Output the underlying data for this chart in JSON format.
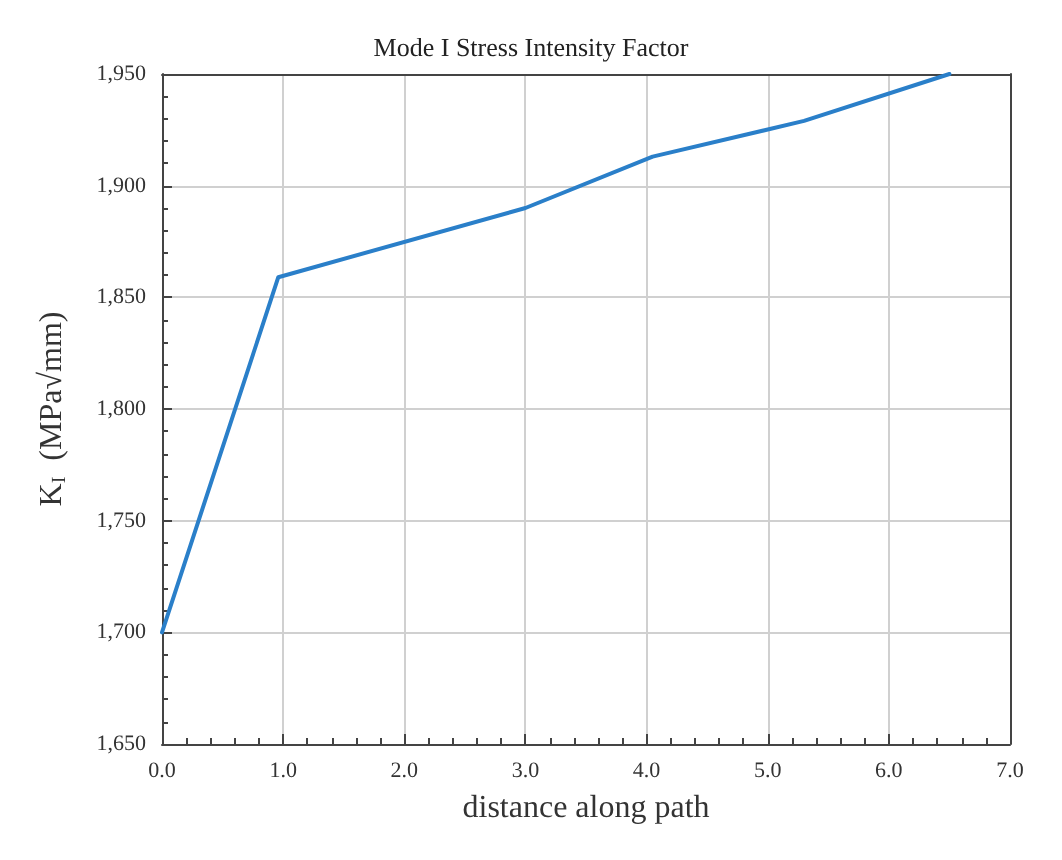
{
  "chart_data": {
    "type": "line",
    "title": "Mode I Stress Intensity Factor",
    "xlabel": "distance along path",
    "ylabel": "K$_{I}$  (MPa√mm)",
    "x": [
      0,
      0.96,
      3.0,
      4.05,
      5.3,
      6.5
    ],
    "series": [
      {
        "color": "#2a7fc9",
        "values": [
          1700,
          1859,
          1890,
          1913,
          1929,
          1950
        ]
      }
    ],
    "xlim": [
      0,
      7
    ],
    "xticks": [
      {
        "value": 0,
        "label": "0.0"
      },
      {
        "value": 1,
        "label": "1.0"
      },
      {
        "value": 2,
        "label": "2.0"
      },
      {
        "value": 3,
        "label": "3.0"
      },
      {
        "value": 4,
        "label": "4.0"
      },
      {
        "value": 5,
        "label": "5.0"
      },
      {
        "value": 6,
        "label": "6.0"
      },
      {
        "value": 7,
        "label": "7.0"
      }
    ],
    "ylim": [
      1650,
      1950
    ],
    "yticks": [
      {
        "value": 1650,
        "label": "1,650"
      },
      {
        "value": 1700,
        "label": "1,700"
      },
      {
        "value": 1750,
        "label": "1,750"
      },
      {
        "value": 1800,
        "label": "1,800"
      },
      {
        "value": 1850,
        "label": "1,850"
      },
      {
        "value": 1900,
        "label": "1,900"
      },
      {
        "value": 1950,
        "label": "1,950"
      }
    ],
    "grid": true,
    "marker": "none",
    "line_style": "solid"
  }
}
